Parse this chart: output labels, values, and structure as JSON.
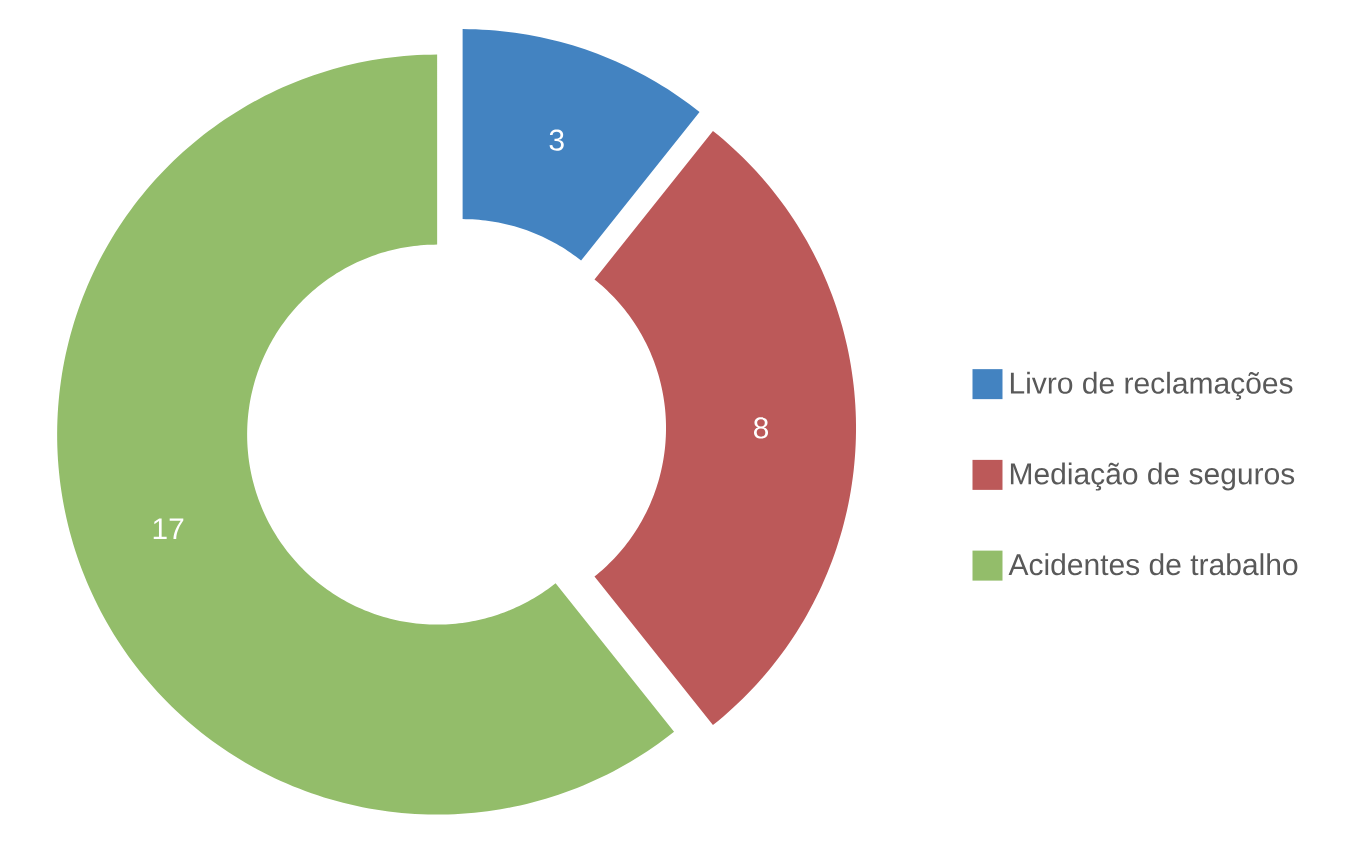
{
  "chart_data": {
    "type": "donut",
    "categories": [
      "Livro de reclamações",
      "Mediação de seguros",
      "Acidentes de trabalho"
    ],
    "values": [
      3,
      8,
      17
    ],
    "colors": [
      "#4383c1",
      "#bc5959",
      "#93bd6a"
    ],
    "data_labels": true,
    "legend": "right"
  }
}
